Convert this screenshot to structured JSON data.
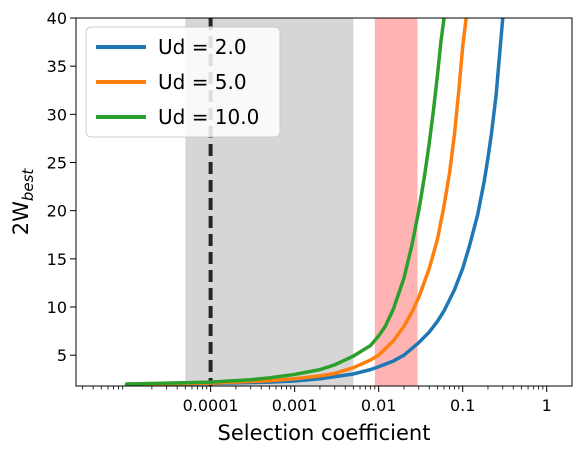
{
  "chart_data": {
    "type": "line",
    "xlabel": "Selection coefficient",
    "ylabel_base": "2W",
    "ylabel_sub": "best",
    "xscale": "log",
    "xlim": [
      2.5e-06,
      2.0
    ],
    "ylim": [
      1.8,
      40
    ],
    "x_ticks": [
      {
        "value": 0.0001,
        "label": "0.0001"
      },
      {
        "value": 0.001,
        "label": "0.001"
      },
      {
        "value": 0.01,
        "label": "0.01"
      },
      {
        "value": 0.1,
        "label": "0.1"
      },
      {
        "value": 1,
        "label": "1"
      }
    ],
    "y_ticks": [
      {
        "value": 5,
        "label": "5"
      },
      {
        "value": 10,
        "label": "10"
      },
      {
        "value": 15,
        "label": "15"
      },
      {
        "value": 20,
        "label": "20"
      },
      {
        "value": 25,
        "label": "25"
      },
      {
        "value": 30,
        "label": "30"
      },
      {
        "value": 35,
        "label": "35"
      },
      {
        "value": 40,
        "label": "40"
      }
    ],
    "grid": false,
    "legend_position": "top-left",
    "shaded_regions": [
      {
        "x0": 5e-05,
        "x1": 0.005,
        "color": "#d6d6d6"
      },
      {
        "x0": 0.009,
        "x1": 0.029,
        "color": "#ffb3b3"
      }
    ],
    "vline": {
      "x": 0.0001,
      "color": "#262626",
      "style": "dashed"
    },
    "series": [
      {
        "name": "Ud = 2.0",
        "color": "#1f77b4",
        "x": [
          1e-05,
          0.0001,
          0.0005,
          0.001,
          0.002,
          0.005,
          0.008,
          0.01,
          0.015,
          0.02,
          0.03,
          0.04,
          0.05,
          0.06,
          0.08,
          0.1,
          0.12,
          0.15,
          0.18,
          0.2,
          0.22,
          0.25,
          0.28,
          0.3
        ],
        "y": [
          2.0,
          2.07,
          2.2,
          2.32,
          2.55,
          3.05,
          3.5,
          3.8,
          4.4,
          5.0,
          6.3,
          7.4,
          8.5,
          9.6,
          11.8,
          14.0,
          16.3,
          19.5,
          23.0,
          25.5,
          28.0,
          32.0,
          37.0,
          40.0
        ]
      },
      {
        "name": "Ud = 5.0",
        "color": "#ff7f0e",
        "x": [
          1e-05,
          0.0001,
          0.0005,
          0.001,
          0.002,
          0.003,
          0.005,
          0.008,
          0.01,
          0.015,
          0.02,
          0.025,
          0.03,
          0.04,
          0.05,
          0.06,
          0.07,
          0.08,
          0.09,
          0.1,
          0.11
        ],
        "y": [
          2.0,
          2.1,
          2.35,
          2.55,
          2.85,
          3.1,
          3.7,
          4.5,
          5.0,
          6.5,
          8.0,
          9.5,
          11.0,
          14.0,
          17.0,
          20.5,
          24.0,
          28.0,
          32.5,
          37.0,
          40.0
        ]
      },
      {
        "name": "Ud = 10.0",
        "color": "#2ca02c",
        "x": [
          1e-05,
          0.0001,
          0.0003,
          0.0005,
          0.001,
          0.002,
          0.003,
          0.005,
          0.008,
          0.01,
          0.012,
          0.015,
          0.02,
          0.025,
          0.03,
          0.035,
          0.04,
          0.045,
          0.05,
          0.055,
          0.06
        ],
        "y": [
          2.0,
          2.2,
          2.45,
          2.65,
          3.0,
          3.5,
          4.0,
          4.9,
          6.0,
          7.0,
          8.0,
          9.8,
          13.0,
          16.5,
          20.0,
          23.5,
          27.0,
          30.5,
          34.0,
          37.5,
          40.0
        ]
      }
    ]
  }
}
